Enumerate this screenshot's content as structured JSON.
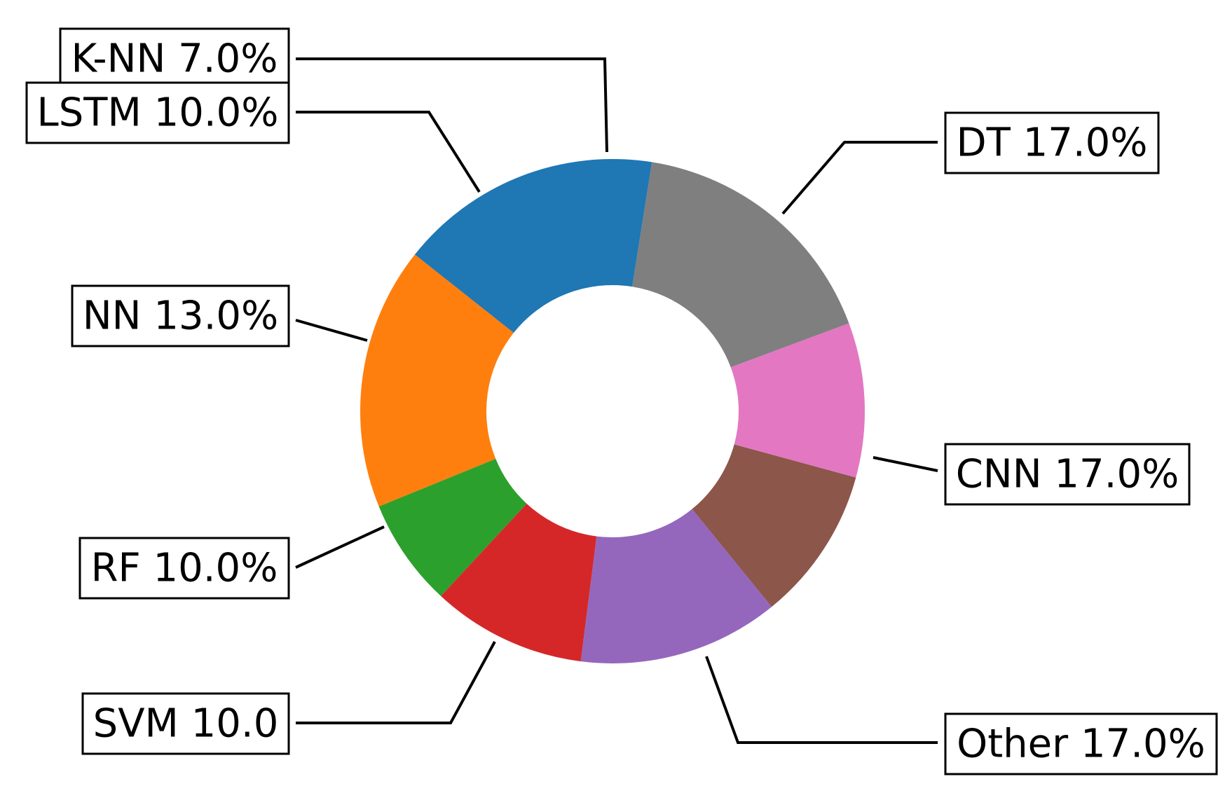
{
  "chart_data": {
    "type": "pie",
    "style": "donut",
    "slices": [
      {
        "name": "CNN",
        "value": 17.0,
        "label": "CNN 17.0%",
        "color": "#1f77b4"
      },
      {
        "name": "DT",
        "value": 17.0,
        "label": "DT 17.0%",
        "color": "#ff7f0e"
      },
      {
        "name": "K-NN",
        "value": 7.0,
        "label": "K-NN 7.0%",
        "color": "#2ca02c"
      },
      {
        "name": "LSTM",
        "value": 10.0,
        "label": "LSTM 10.0%",
        "color": "#d62728"
      },
      {
        "name": "NN",
        "value": 13.0,
        "label": "NN 13.0%",
        "color": "#9467bd"
      },
      {
        "name": "RF",
        "value": 10.0,
        "label": "RF 10.0%",
        "color": "#8c564b"
      },
      {
        "name": "SVM",
        "value": 10.0,
        "label": "SVM 10.0",
        "color": "#e377c2"
      },
      {
        "name": "Other",
        "value": 17.0,
        "label": "Other 17.0%",
        "color": "#7f7f7f"
      }
    ],
    "title": "",
    "legend": "none"
  }
}
